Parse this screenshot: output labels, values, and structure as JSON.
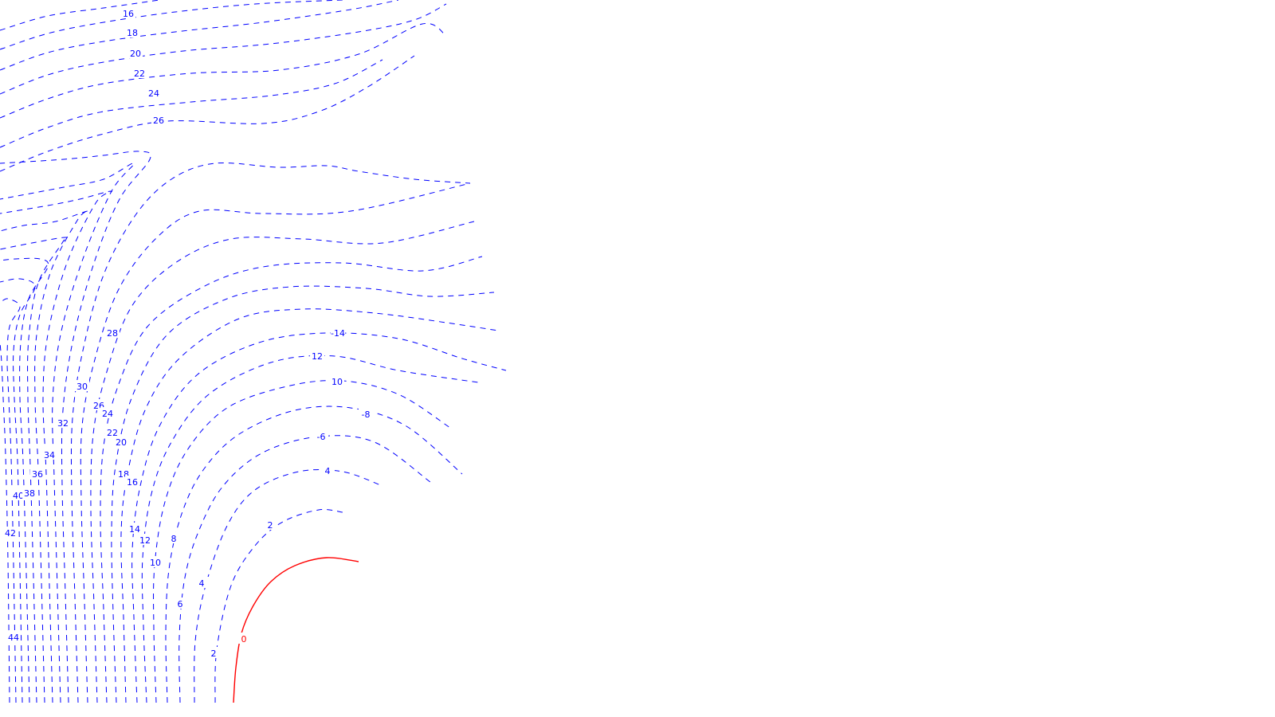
{
  "chart_data": {
    "type": "contour",
    "title": "",
    "xlabel": "",
    "ylabel": "",
    "negative_color": "#0000ff",
    "zero_color": "#ff0000",
    "negative_style": "dashed",
    "zero_style": "solid",
    "contours": [
      {
        "level": -2
      },
      {
        "level": -4
      },
      {
        "level": -6
      },
      {
        "level": -8
      },
      {
        "level": -10
      },
      {
        "level": -12
      },
      {
        "level": -14
      },
      {
        "level": -16
      },
      {
        "level": -18
      },
      {
        "level": -20
      },
      {
        "level": -22
      },
      {
        "level": -24
      },
      {
        "level": -26
      },
      {
        "level": -28
      },
      {
        "level": -30
      },
      {
        "level": -32
      },
      {
        "level": -34
      },
      {
        "level": -36
      },
      {
        "level": -38
      },
      {
        "level": -40
      },
      {
        "level": -42
      },
      {
        "level": -44
      },
      {
        "level": 0
      }
    ],
    "labels": [
      {
        "text": "16"
      },
      {
        "text": "18"
      },
      {
        "text": "20"
      },
      {
        "text": "22"
      },
      {
        "text": "24"
      },
      {
        "text": "26"
      },
      {
        "text": "-14"
      },
      {
        "text": "12"
      },
      {
        "text": "10"
      },
      {
        "text": "-8"
      },
      {
        "text": "-6"
      },
      {
        "text": "4"
      },
      {
        "text": "2"
      },
      {
        "text": "28"
      },
      {
        "text": "30"
      },
      {
        "text": "26"
      },
      {
        "text": "24"
      },
      {
        "text": "32"
      },
      {
        "text": "22"
      },
      {
        "text": "20"
      },
      {
        "text": "34"
      },
      {
        "text": "36"
      },
      {
        "text": "18"
      },
      {
        "text": "16"
      },
      {
        "text": "40"
      },
      {
        "text": "38"
      },
      {
        "text": "42"
      },
      {
        "text": "14"
      },
      {
        "text": "12"
      },
      {
        "text": "8"
      },
      {
        "text": "10"
      },
      {
        "text": "4"
      },
      {
        "text": "6"
      },
      {
        "text": "44"
      },
      {
        "text": "2"
      },
      {
        "text": "0"
      }
    ]
  }
}
